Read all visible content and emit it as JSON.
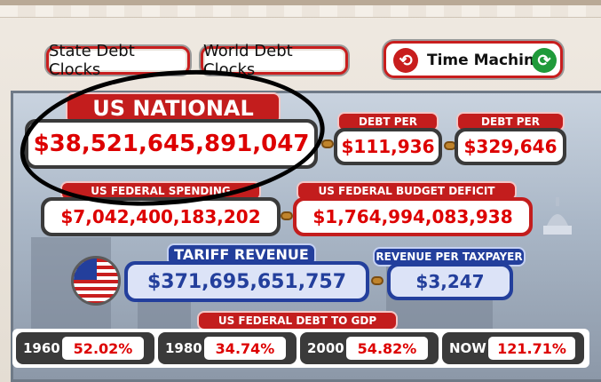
{
  "nav": {
    "state_label": "State Debt Clocks",
    "world_label": "World Debt Clocks",
    "time_machine_label": "Time Machine"
  },
  "national_debt": {
    "label": "US NATIONAL DEBT",
    "value": "$38,521,645,891,047"
  },
  "per_citizen": {
    "label": "DEBT PER CITIZEN",
    "value": "$111,936"
  },
  "per_taxpayer": {
    "label": "DEBT PER TAXPAYER",
    "value": "$329,646"
  },
  "spending": {
    "label": "US FEDERAL SPENDING (OFFICIAL)",
    "value": "$7,042,400,183,202"
  },
  "deficit": {
    "label": "US FEDERAL BUDGET DEFICIT (OFFICIAL)",
    "value": "$1,764,994,083,938"
  },
  "tariff": {
    "label": "TARIFF REVENUE",
    "value": "$371,695,651,757"
  },
  "revenue_per_taxpayer": {
    "label": "REVENUE PER TAXPAYER",
    "value": "$3,247"
  },
  "gdp_ratio": {
    "label": "US FEDERAL DEBT TO GDP RATIO",
    "items": [
      {
        "year": "1960",
        "value": "52.02%"
      },
      {
        "year": "1980",
        "value": "34.74%"
      },
      {
        "year": "2000",
        "value": "54.82%"
      },
      {
        "year": "NOW",
        "value": "121.71%"
      }
    ]
  },
  "colors": {
    "accent_red": "#c31d1d",
    "accent_blue": "#233f9c",
    "value_red": "#d00000"
  }
}
